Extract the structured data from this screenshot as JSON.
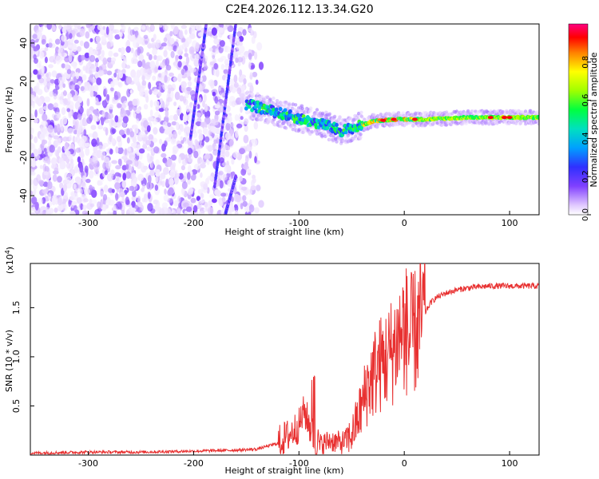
{
  "title": "C2E4.2026.112.13.34.G20",
  "chart_data": [
    {
      "type": "heatmap",
      "xlabel": "Height of straight line (km)",
      "ylabel": "Frequency (Hz)",
      "xlim": [
        -355,
        128
      ],
      "ylim": [
        -50,
        50
      ],
      "xticks": [
        -300,
        -200,
        -100,
        0,
        100
      ],
      "yticks": [
        -40,
        -20,
        0,
        20,
        40
      ],
      "grid": false,
      "colorbar": {
        "label": "Normalized spectral amplitude",
        "range": [
          0,
          1
        ],
        "ticks": [
          0.0,
          0.2,
          0.4,
          0.6,
          0.8
        ],
        "colors": [
          "#ffffff",
          "#e0c8ff",
          "#8040ff",
          "#3030ff",
          "#00a0ff",
          "#00e0c0",
          "#00ff40",
          "#a0ff00",
          "#ffff00",
          "#ff8000",
          "#ff0000",
          "#ff0080"
        ]
      },
      "regions": {
        "noise_x_range": [
          -355,
          -135
        ],
        "signal_track": [
          {
            "x": -150,
            "y": 8
          },
          {
            "x": -130,
            "y": 5
          },
          {
            "x": -110,
            "y": 2
          },
          {
            "x": -90,
            "y": -1
          },
          {
            "x": -75,
            "y": -3
          },
          {
            "x": -60,
            "y": -6
          },
          {
            "x": -45,
            "y": -4
          },
          {
            "x": -30,
            "y": -1
          },
          {
            "x": -10,
            "y": 0
          },
          {
            "x": 20,
            "y": 0
          },
          {
            "x": 60,
            "y": 1
          },
          {
            "x": 100,
            "y": 1
          },
          {
            "x": 128,
            "y": 1
          }
        ],
        "streaks": [
          {
            "x1": -203,
            "y1": -10,
            "x2": -188,
            "y2": 50
          },
          {
            "x1": -180,
            "y1": -35,
            "x2": -160,
            "y2": 50
          },
          {
            "x1": -170,
            "y1": -50,
            "x2": -160,
            "y2": -30
          }
        ]
      }
    },
    {
      "type": "line",
      "xlabel": "Height of straight line (km)",
      "ylabel": "SNR (10 * v/v)",
      "multiplier": "(x10",
      "multiplier_exp": "4",
      "multiplier_close": ")",
      "xlim": [
        -355,
        128
      ],
      "ylim": [
        0,
        1.95
      ],
      "xticks": [
        -300,
        -200,
        -100,
        0,
        100
      ],
      "yticks": [
        0.5,
        1.0,
        1.5
      ],
      "ytick_labels": [
        "0.5",
        "1.0",
        "1.5"
      ],
      "grid": false,
      "series": [
        {
          "color": "#e83030",
          "x": [
            -355,
            -300,
            -250,
            -200,
            -160,
            -140,
            -120,
            -110,
            -100,
            -95,
            -90,
            -85,
            -80,
            -70,
            -60,
            -50,
            -45,
            -40,
            -35,
            -30,
            -25,
            -20,
            -15,
            -10,
            -5,
            0,
            5,
            10,
            15,
            20,
            25,
            30,
            40,
            50,
            60,
            80,
            100,
            128
          ],
          "y": [
            0.02,
            0.03,
            0.03,
            0.04,
            0.05,
            0.06,
            0.12,
            0.2,
            0.3,
            0.45,
            0.3,
            0.15,
            0.1,
            0.15,
            0.12,
            0.2,
            0.35,
            0.5,
            0.7,
            0.8,
            0.9,
            0.95,
            1.0,
            1.1,
            1.2,
            1.3,
            1.2,
            1.25,
            1.35,
            1.45,
            1.55,
            1.6,
            1.65,
            1.68,
            1.7,
            1.72,
            1.72,
            1.72
          ]
        }
      ]
    }
  ]
}
